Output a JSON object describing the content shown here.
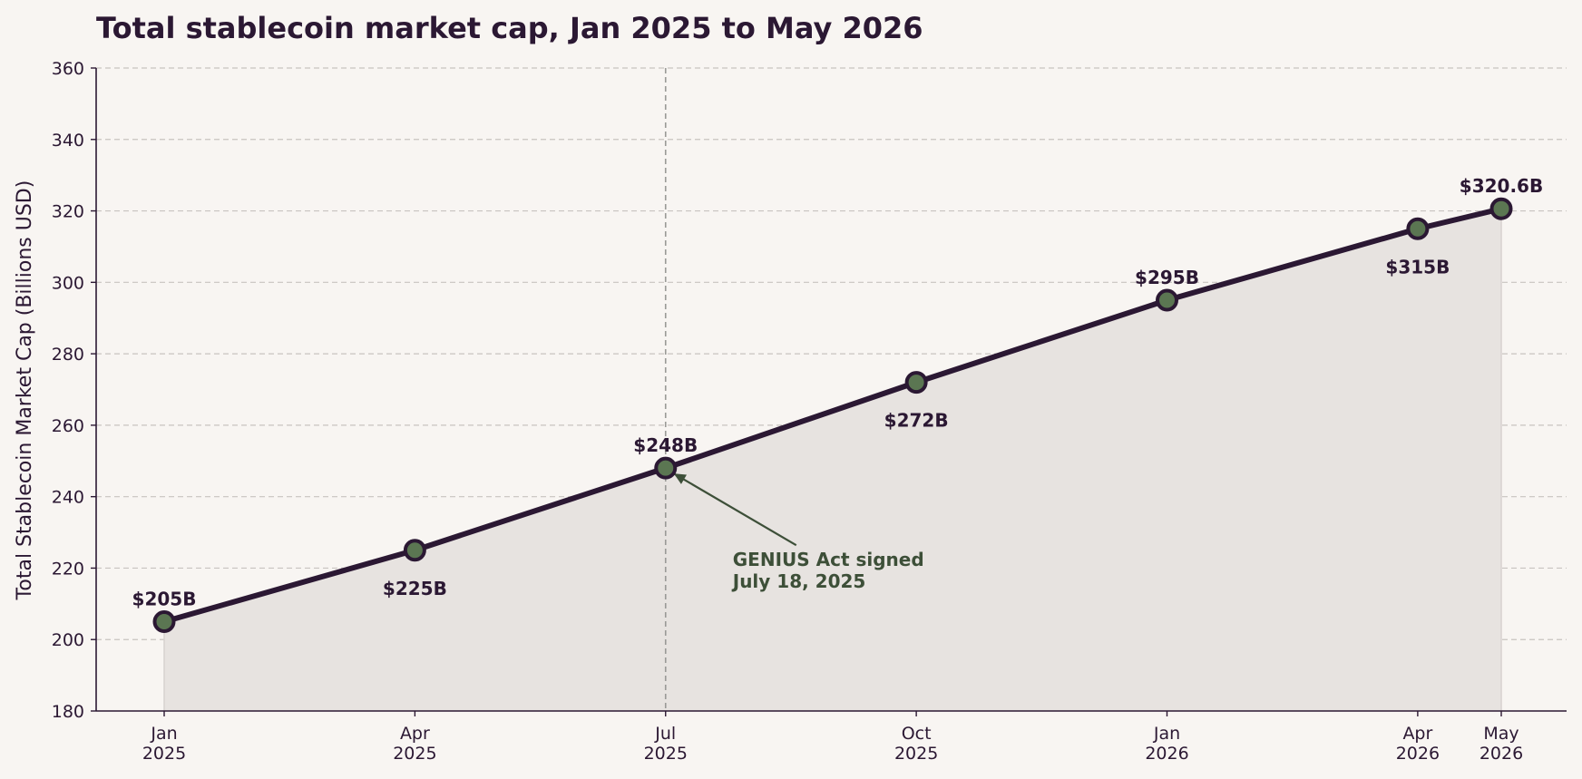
{
  "chart_data": {
    "type": "line",
    "title": "Total stablecoin market cap, Jan 2025 to May 2026",
    "ylabel": "Total Stablecoin Market Cap (Billions USD)",
    "xlabel": "",
    "ylim": [
      180,
      360
    ],
    "yticks": [
      180,
      200,
      220,
      240,
      260,
      280,
      300,
      320,
      340,
      360
    ],
    "x": [
      "2025-01",
      "2025-04",
      "2025-07",
      "2025-10",
      "2026-01",
      "2026-04",
      "2026-05"
    ],
    "x_tick_labels": [
      [
        "Jan",
        "2025"
      ],
      [
        "Apr",
        "2025"
      ],
      [
        "Jul",
        "2025"
      ],
      [
        "Oct",
        "2025"
      ],
      [
        "Jan",
        "2026"
      ],
      [
        "Apr",
        "2026"
      ],
      [
        "May",
        "2026"
      ]
    ],
    "series": [
      {
        "values": [
          205,
          225,
          248,
          272,
          295,
          315,
          320.6
        ],
        "data_labels": [
          "$205B",
          "$225B",
          "$248B",
          "$272B",
          "$295B",
          "$315B",
          "$320.6B"
        ]
      }
    ],
    "annotation": {
      "x": "2025-07",
      "y": 248,
      "lines": [
        "GENIUS Act signed",
        "July 18, 2025"
      ]
    },
    "grid": true,
    "colors": {
      "background": "#f8f5f2",
      "line": "#2b1833",
      "marker_fill": "#5b7652",
      "area_fill": "#e7e3e0",
      "annotation": "#3d4f38",
      "grid": "#c8c3c0",
      "vline": "#9a9a96"
    }
  }
}
